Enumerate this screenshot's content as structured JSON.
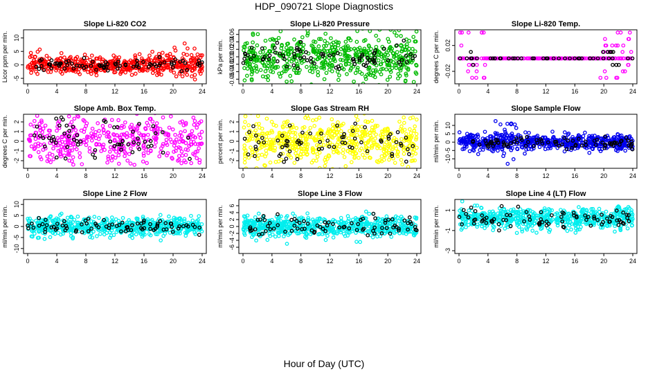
{
  "title": "HDP_090721  Slope Diagnostics",
  "xlabel": "Hour of Day (UTC)",
  "chart_data": [
    {
      "type": "scatter",
      "title": "Slope Li-820 CO2",
      "ylabel": "Licor ppm per min.",
      "color": "#ff0000",
      "xlim": [
        0,
        24
      ],
      "xticks": [
        0,
        4,
        8,
        12,
        16,
        20,
        24
      ],
      "ylim": [
        -6,
        12
      ],
      "yticks": [
        -5,
        0,
        5,
        10
      ],
      "ytick_labels": [
        "-5",
        "0",
        "5",
        "10"
      ],
      "spread": 1.6,
      "black_spread": 1.1,
      "burst": {
        "from": 16,
        "to": 24,
        "extra": 3.5,
        "offset": 1
      },
      "n": 520,
      "n_black": 80,
      "seed": 11
    },
    {
      "type": "scatter",
      "title": "Slope Li-820 Pressure",
      "ylabel": "kPa per min.",
      "color": "#00bb00",
      "xlim": [
        0,
        24
      ],
      "xticks": [
        0,
        4,
        8,
        12,
        16,
        20,
        24
      ],
      "ylim": [
        -0.065,
        0.065
      ],
      "yticks": [
        -0.06,
        -0.04,
        -0.02,
        0.0,
        0.02,
        0.04,
        0.06
      ],
      "ytick_labels": [
        "-0.06",
        "-0.04",
        "-0.02",
        "0.00",
        "0.02",
        "0.04",
        "0.06"
      ],
      "spread": 0.03,
      "black_spread": 0.016,
      "n": 560,
      "n_black": 80,
      "seed": 23
    },
    {
      "type": "scatter",
      "title": "Slope Li-820 Temp.",
      "ylabel": "degrees C per min.",
      "color": "#ff00ff",
      "xlim": [
        0,
        24
      ],
      "xticks": [
        0,
        4,
        8,
        12,
        16,
        20,
        24
      ],
      "ylim": [
        -0.035,
        0.04
      ],
      "yticks": [
        -0.02,
        0.02
      ],
      "ytick_labels": [
        "-0.02",
        "0.02"
      ],
      "quantized": {
        "levels": [
          -0.03,
          -0.02,
          -0.01,
          0.0,
          0.01,
          0.02,
          0.03,
          0.04
        ],
        "active": [
          [
            0,
            4
          ],
          [
            19.5,
            24
          ]
        ]
      },
      "n": 300,
      "n_black": 50,
      "seed": 37
    },
    {
      "type": "scatter",
      "title": "Slope Amb. Box Temp.",
      "ylabel": "degrees C per min.",
      "color": "#ff00ff",
      "xlim": [
        0,
        24
      ],
      "xticks": [
        0,
        4,
        8,
        12,
        16,
        20,
        24
      ],
      "ylim": [
        -2.5,
        2.5
      ],
      "yticks": [
        -2,
        -1,
        0,
        1,
        2
      ],
      "ytick_labels": [
        "-2",
        "-1",
        "0",
        "1",
        "2"
      ],
      "spread": 1.3,
      "black_spread": 1.2,
      "n": 420,
      "n_black": 60,
      "seed": 41
    },
    {
      "type": "scatter",
      "title": "Slope Gas Stream RH",
      "ylabel": "percent per min.",
      "color": "#ffff00",
      "xlim": [
        0,
        24
      ],
      "xticks": [
        0,
        4,
        8,
        12,
        16,
        20,
        24
      ],
      "ylim": [
        -2.5,
        2.5
      ],
      "yticks": [
        -2,
        -1,
        0,
        1,
        2
      ],
      "ytick_labels": [
        "-2",
        "-1",
        "0",
        "1",
        "2"
      ],
      "spread": 1.2,
      "black_spread": 1.0,
      "n": 560,
      "n_black": 70,
      "seed": 53
    },
    {
      "type": "scatter",
      "title": "Slope Sample Flow",
      "ylabel": "ml/min per min.",
      "color": "#0000ee",
      "xlim": [
        0,
        24
      ],
      "xticks": [
        0,
        4,
        8,
        12,
        16,
        20,
        24
      ],
      "ylim": [
        -14,
        15
      ],
      "yticks": [
        -10,
        -5,
        0,
        5,
        10
      ],
      "ytick_labels": [
        "-10",
        "-5",
        "0",
        "5",
        "10"
      ],
      "spread": 2.2,
      "black_spread": 1.8,
      "burst": {
        "from": 5,
        "to": 8,
        "extra": 6,
        "offset": 4
      },
      "n": 600,
      "n_black": 80,
      "seed": 67
    },
    {
      "type": "scatter",
      "title": "Slope Line 2 Flow",
      "ylabel": "ml/min per min.",
      "color": "#00eeee",
      "xlim": [
        0,
        24
      ],
      "xticks": [
        0,
        4,
        8,
        12,
        16,
        20,
        24
      ],
      "ylim": [
        -11,
        11
      ],
      "yticks": [
        -10,
        -5,
        0,
        5,
        10
      ],
      "ytick_labels": [
        "-10",
        "-5",
        "0",
        "5",
        "10"
      ],
      "spread": 2.0,
      "black_spread": 1.6,
      "n": 600,
      "n_black": 80,
      "seed": 71
    },
    {
      "type": "scatter",
      "title": "Slope Line 3 Flow",
      "ylabel": "ml/min per min.",
      "color": "#00eeee",
      "xlim": [
        0,
        24
      ],
      "xticks": [
        0,
        4,
        8,
        12,
        16,
        20,
        24
      ],
      "ylim": [
        -7,
        7
      ],
      "yticks": [
        -6,
        -4,
        -2,
        0,
        2,
        4,
        6
      ],
      "ytick_labels": [
        "-6",
        "-4",
        "-2",
        "0",
        "2",
        "4",
        "6"
      ],
      "spread": 1.5,
      "black_spread": 1.4,
      "n": 620,
      "n_black": 80,
      "seed": 83
    },
    {
      "type": "scatter",
      "title": "Slope Line 4 (LT) Flow",
      "ylabel": "ml/min per min.",
      "color": "#00eeee",
      "xlim": [
        0,
        24
      ],
      "xticks": [
        0,
        4,
        8,
        12,
        16,
        20,
        24
      ],
      "ylim": [
        -3,
        1.8
      ],
      "yticks": [
        -3,
        -1,
        1
      ],
      "ytick_labels": [
        "-3",
        "-1",
        "1"
      ],
      "spread": 0.55,
      "black_spread": 0.45,
      "center": 0.2,
      "n": 620,
      "n_black": 80,
      "seed": 97
    }
  ]
}
